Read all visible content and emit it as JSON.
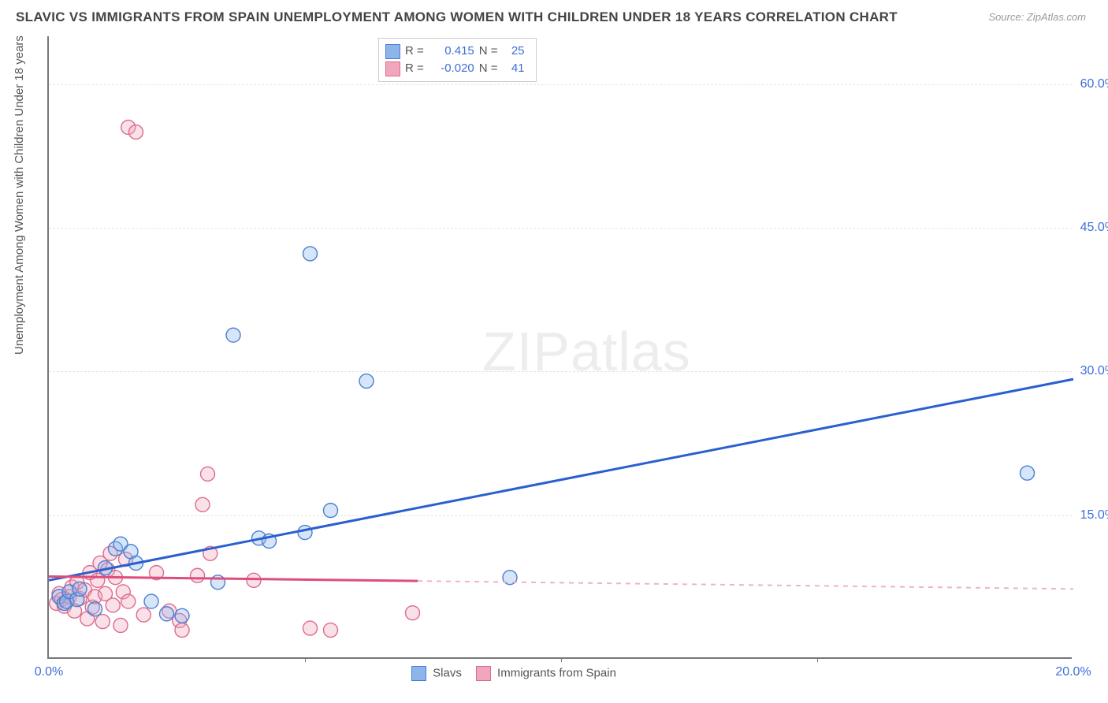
{
  "title": "SLAVIC VS IMMIGRANTS FROM SPAIN UNEMPLOYMENT AMONG WOMEN WITH CHILDREN UNDER 18 YEARS CORRELATION CHART",
  "source": "Source: ZipAtlas.com",
  "y_axis_label": "Unemployment Among Women with Children Under 18 years",
  "watermark": {
    "bold": "ZIP",
    "thin": "atlas"
  },
  "chart": {
    "type": "scatter-with-trendlines",
    "background_color": "#ffffff",
    "grid_color": "#e4e4e4",
    "axis_color": "#777777",
    "tick_label_color": "#3d6fd6",
    "axis_label_color": "#555555",
    "title_color": "#444444",
    "title_fontsize": 17,
    "label_fontsize": 15,
    "tick_fontsize": 16,
    "marker_radius": 9,
    "marker_stroke_width": 1.4,
    "marker_fill_opacity": 0.35,
    "trend_line_width": 3,
    "xlim": [
      0,
      20
    ],
    "ylim": [
      0,
      65
    ],
    "x_ticks": [
      {
        "value": 0,
        "label": "0.0%"
      },
      {
        "value": 20,
        "label": "20.0%"
      }
    ],
    "x_minor_ticks": [
      5,
      10,
      15
    ],
    "y_ticks": [
      {
        "value": 15,
        "label": "15.0%"
      },
      {
        "value": 30,
        "label": "30.0%"
      },
      {
        "value": 45,
        "label": "45.0%"
      },
      {
        "value": 60,
        "label": "60.0%"
      }
    ],
    "series": [
      {
        "key": "slavs",
        "name": "Slavs",
        "marker_fill": "#8db5ea",
        "marker_stroke": "#4a7fd1",
        "trend_color": "#2a5fcf",
        "trend_dash_end": 20,
        "R": "0.415",
        "N": "25",
        "trend_line": {
          "x1": 0,
          "y1": 8.2,
          "x2": 20,
          "y2": 29.2
        },
        "points": [
          {
            "x": 0.2,
            "y": 6.5
          },
          {
            "x": 0.3,
            "y": 5.8
          },
          {
            "x": 0.35,
            "y": 6.0
          },
          {
            "x": 0.4,
            "y": 7.0
          },
          {
            "x": 0.55,
            "y": 6.2
          },
          {
            "x": 0.6,
            "y": 7.3
          },
          {
            "x": 0.9,
            "y": 5.2
          },
          {
            "x": 1.1,
            "y": 9.5
          },
          {
            "x": 1.3,
            "y": 11.5
          },
          {
            "x": 1.4,
            "y": 12.0
          },
          {
            "x": 1.6,
            "y": 11.2
          },
          {
            "x": 1.7,
            "y": 10.0
          },
          {
            "x": 2.0,
            "y": 6.0
          },
          {
            "x": 2.3,
            "y": 4.7
          },
          {
            "x": 2.6,
            "y": 4.5
          },
          {
            "x": 3.3,
            "y": 8.0
          },
          {
            "x": 3.6,
            "y": 33.8
          },
          {
            "x": 4.1,
            "y": 12.6
          },
          {
            "x": 4.3,
            "y": 12.3
          },
          {
            "x": 5.0,
            "y": 13.2
          },
          {
            "x": 5.1,
            "y": 42.3
          },
          {
            "x": 5.5,
            "y": 15.5
          },
          {
            "x": 6.2,
            "y": 29.0
          },
          {
            "x": 9.0,
            "y": 8.5
          },
          {
            "x": 19.1,
            "y": 19.4
          }
        ]
      },
      {
        "key": "spain",
        "name": "Immigrants from Spain",
        "marker_fill": "#f0a7bb",
        "marker_stroke": "#de6a8f",
        "trend_color": "#de4d7d",
        "trend_dash_color": "#efb3c5",
        "trend_dash_end": 20,
        "trend_solid_end": 7.2,
        "R": "-0.020",
        "N": "41",
        "trend_line": {
          "x1": 0,
          "y1": 8.6,
          "x2": 20,
          "y2": 7.3
        },
        "points": [
          {
            "x": 0.15,
            "y": 5.8
          },
          {
            "x": 0.2,
            "y": 6.8
          },
          {
            "x": 0.25,
            "y": 6.2
          },
          {
            "x": 0.3,
            "y": 5.5
          },
          {
            "x": 0.4,
            "y": 6.5
          },
          {
            "x": 0.45,
            "y": 7.5
          },
          {
            "x": 0.5,
            "y": 5.0
          },
          {
            "x": 0.55,
            "y": 8.0
          },
          {
            "x": 0.6,
            "y": 6.3
          },
          {
            "x": 0.7,
            "y": 7.2
          },
          {
            "x": 0.75,
            "y": 4.2
          },
          {
            "x": 0.8,
            "y": 9.0
          },
          {
            "x": 0.85,
            "y": 5.4
          },
          {
            "x": 0.9,
            "y": 6.5
          },
          {
            "x": 0.95,
            "y": 8.2
          },
          {
            "x": 1.0,
            "y": 10.0
          },
          {
            "x": 1.05,
            "y": 3.9
          },
          {
            "x": 1.1,
            "y": 6.8
          },
          {
            "x": 1.15,
            "y": 9.3
          },
          {
            "x": 1.2,
            "y": 11.0
          },
          {
            "x": 1.25,
            "y": 5.6
          },
          {
            "x": 1.3,
            "y": 8.5
          },
          {
            "x": 1.4,
            "y": 3.5
          },
          {
            "x": 1.45,
            "y": 7.0
          },
          {
            "x": 1.5,
            "y": 10.4
          },
          {
            "x": 1.55,
            "y": 6.0
          },
          {
            "x": 1.55,
            "y": 55.5
          },
          {
            "x": 1.7,
            "y": 55.0
          },
          {
            "x": 1.85,
            "y": 4.6
          },
          {
            "x": 2.1,
            "y": 9.0
          },
          {
            "x": 2.35,
            "y": 5.0
          },
          {
            "x": 2.55,
            "y": 4.0
          },
          {
            "x": 2.6,
            "y": 3.0
          },
          {
            "x": 2.9,
            "y": 8.7
          },
          {
            "x": 3.0,
            "y": 16.1
          },
          {
            "x": 3.1,
            "y": 19.3
          },
          {
            "x": 3.15,
            "y": 11.0
          },
          {
            "x": 4.0,
            "y": 8.2
          },
          {
            "x": 5.1,
            "y": 3.2
          },
          {
            "x": 5.5,
            "y": 3.0
          },
          {
            "x": 7.1,
            "y": 4.8
          }
        ]
      }
    ],
    "correlation_box_labels": {
      "R": "R =",
      "N": "N ="
    },
    "legend": {
      "items": [
        {
          "series_key": "slavs"
        },
        {
          "series_key": "spain"
        }
      ]
    }
  }
}
